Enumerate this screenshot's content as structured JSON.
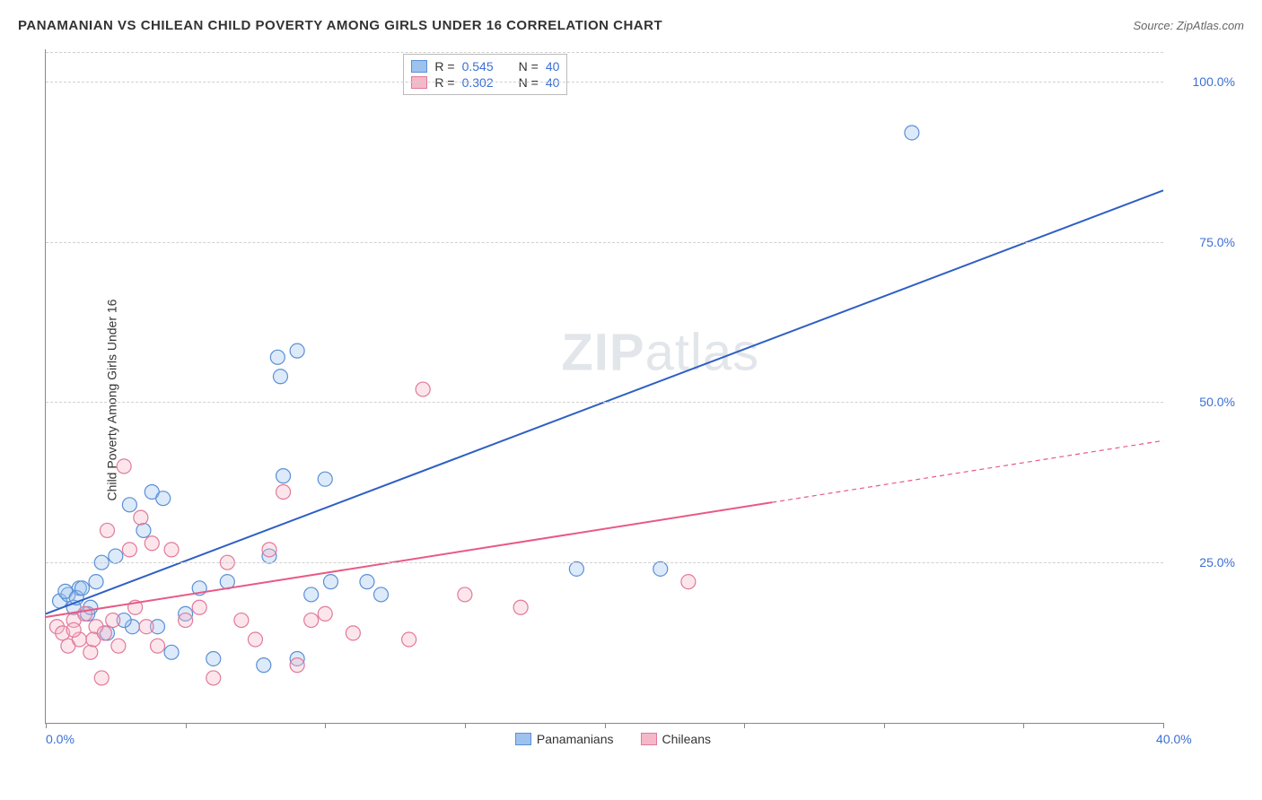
{
  "title": "PANAMANIAN VS CHILEAN CHILD POVERTY AMONG GIRLS UNDER 16 CORRELATION CHART",
  "source": "Source: ZipAtlas.com",
  "watermark": {
    "bold": "ZIP",
    "rest": "atlas"
  },
  "ylabel": "Child Poverty Among Girls Under 16",
  "chart": {
    "type": "scatter-correlation",
    "background_color": "#ffffff",
    "grid_color": "#d0d0d0",
    "axis_color": "#888888",
    "tick_color": "#3b6fd6",
    "tick_fontsize": 14,
    "xlim": [
      0,
      40
    ],
    "ylim": [
      0,
      105
    ],
    "xticks": [
      0,
      5,
      10,
      15,
      20,
      25,
      30,
      35,
      40
    ],
    "xtick_labels": {
      "0": "0.0%",
      "40": "40.0%"
    },
    "yticks": [
      25,
      50,
      75,
      100
    ],
    "ytick_labels": {
      "25": "25.0%",
      "50": "50.0%",
      "75": "75.0%",
      "100": "100.0%"
    },
    "marker_radius": 8,
    "marker_fill_opacity": 0.35,
    "marker_stroke_width": 1.2,
    "line_width": 2
  },
  "series": [
    {
      "key": "panamanians",
      "label": "Panamanians",
      "color_fill": "#9ec2ee",
      "color_stroke": "#5a8fd6",
      "line_color": "#2f5fc4",
      "r_value": "0.545",
      "n_value": "40",
      "trend": {
        "x1": 0,
        "y1": 17,
        "x2": 40,
        "y2": 83,
        "dash_from_x": null
      },
      "points": [
        [
          0.5,
          19
        ],
        [
          0.8,
          20
        ],
        [
          1.0,
          18
        ],
        [
          1.2,
          21
        ],
        [
          1.5,
          17
        ],
        [
          1.8,
          22
        ],
        [
          0.7,
          20.5
        ],
        [
          1.1,
          19.5
        ],
        [
          2.0,
          25
        ],
        [
          2.2,
          14
        ],
        [
          2.5,
          26
        ],
        [
          3.0,
          34
        ],
        [
          3.1,
          15
        ],
        [
          3.5,
          30
        ],
        [
          3.8,
          36
        ],
        [
          4.0,
          15
        ],
        [
          4.2,
          35
        ],
        [
          4.5,
          11
        ],
        [
          5.0,
          17
        ],
        [
          5.5,
          21
        ],
        [
          6.0,
          10
        ],
        [
          6.5,
          22
        ],
        [
          7.8,
          9
        ],
        [
          8.0,
          26
        ],
        [
          8.5,
          38.5
        ],
        [
          9.0,
          10
        ],
        [
          9.5,
          20
        ],
        [
          10.0,
          38
        ],
        [
          10.2,
          22
        ],
        [
          11.5,
          22
        ],
        [
          12.0,
          20
        ],
        [
          8.3,
          57
        ],
        [
          9.0,
          58
        ],
        [
          8.4,
          54
        ],
        [
          19.0,
          24
        ],
        [
          22.0,
          24
        ],
        [
          31.0,
          92
        ],
        [
          1.3,
          21
        ],
        [
          1.6,
          18
        ],
        [
          2.8,
          16
        ]
      ]
    },
    {
      "key": "chileans",
      "label": "Chileans",
      "color_fill": "#f5b8c8",
      "color_stroke": "#e17a9a",
      "line_color": "#e85a85",
      "r_value": "0.302",
      "n_value": "40",
      "trend": {
        "x1": 0,
        "y1": 16.5,
        "x2": 40,
        "y2": 44,
        "dash_from_x": 26
      },
      "points": [
        [
          0.4,
          15
        ],
        [
          0.6,
          14
        ],
        [
          0.8,
          12
        ],
        [
          1.0,
          16
        ],
        [
          1.2,
          13
        ],
        [
          1.4,
          17
        ],
        [
          1.6,
          11
        ],
        [
          1.8,
          15
        ],
        [
          2.0,
          7
        ],
        [
          2.2,
          30
        ],
        [
          2.4,
          16
        ],
        [
          2.6,
          12
        ],
        [
          2.8,
          40
        ],
        [
          3.0,
          27
        ],
        [
          3.2,
          18
        ],
        [
          3.4,
          32
        ],
        [
          3.6,
          15
        ],
        [
          3.8,
          28
        ],
        [
          4.0,
          12
        ],
        [
          4.5,
          27
        ],
        [
          5.0,
          16
        ],
        [
          5.5,
          18
        ],
        [
          6.0,
          7
        ],
        [
          6.5,
          25
        ],
        [
          7.0,
          16
        ],
        [
          7.5,
          13
        ],
        [
          8.0,
          27
        ],
        [
          8.5,
          36
        ],
        [
          9.0,
          9
        ],
        [
          9.5,
          16
        ],
        [
          10.0,
          17
        ],
        [
          11.0,
          14
        ],
        [
          13.0,
          13
        ],
        [
          13.5,
          52
        ],
        [
          15.0,
          20
        ],
        [
          17.0,
          18
        ],
        [
          23.0,
          22
        ],
        [
          1.0,
          14.5
        ],
        [
          1.7,
          13
        ],
        [
          2.1,
          14
        ]
      ]
    }
  ],
  "stats_legend": {
    "r_prefix": "R = ",
    "n_prefix": "N = "
  }
}
